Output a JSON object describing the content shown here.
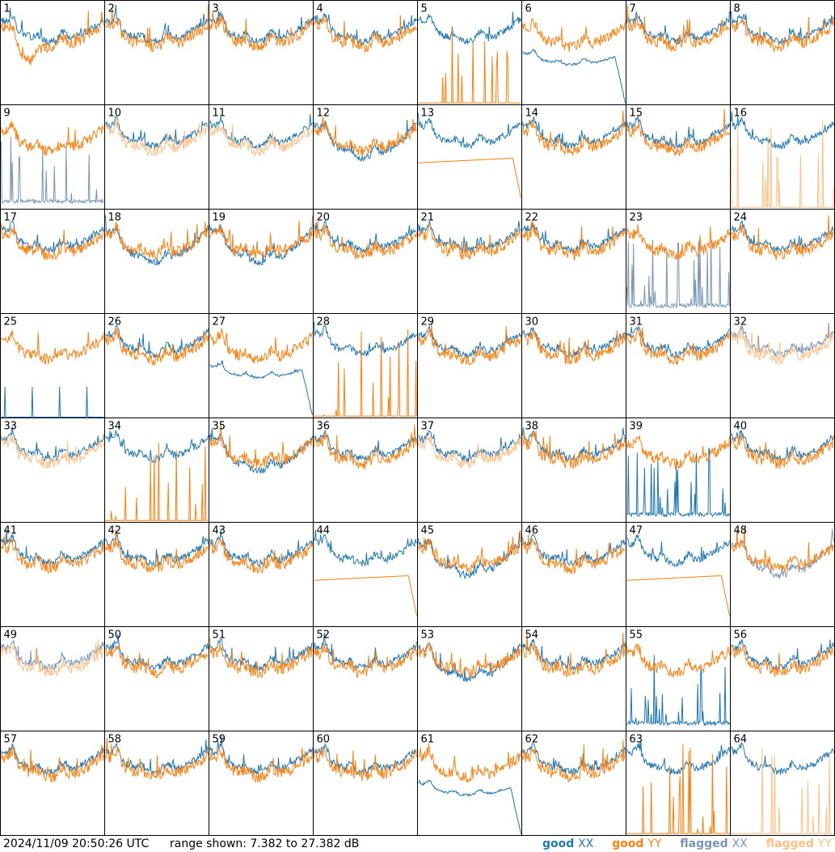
{
  "footer": {
    "timestamp": "2024/11/09 20:50:26 UTC",
    "range": "range shown: 7.382 to 27.382 dB"
  },
  "legend": {
    "good_xx_word": "good",
    "good_xx_pol": "XX",
    "good_yy_word": "good",
    "good_yy_pol": "YY",
    "flagged_xx_word": "flagged",
    "flagged_xx_pol": "XX",
    "flagged_yy_word": "flagged",
    "flagged_yy_pol": "YY"
  },
  "chart_data": {
    "type": "line",
    "layout": "small-multiples 8x8",
    "y_range_db": [
      7.382,
      27.382
    ],
    "colors": {
      "good_xx": "#1f77b4",
      "good_yy": "#ff7f0e",
      "flagged_xx": "#7a96b4",
      "flagged_yy": "#ffbf86"
    },
    "panels": [
      {
        "label": "1",
        "xx": "good",
        "yy": "good",
        "profile": "droopy_yy"
      },
      {
        "label": "2",
        "xx": "good",
        "yy": "good",
        "profile": "normal"
      },
      {
        "label": "3",
        "xx": "good",
        "yy": "good",
        "profile": "normal"
      },
      {
        "label": "4",
        "xx": "good",
        "yy": "good",
        "profile": "normal"
      },
      {
        "label": "5",
        "xx": "good",
        "yy": "good",
        "profile": "yy_spikes"
      },
      {
        "label": "6",
        "xx": "good",
        "yy": "good",
        "profile": "xx_droop"
      },
      {
        "label": "7",
        "xx": "good",
        "yy": "good",
        "profile": "normal"
      },
      {
        "label": "8",
        "xx": "good",
        "yy": "good",
        "profile": "normal"
      },
      {
        "label": "9",
        "xx": "flagged",
        "yy": "good",
        "profile": "xx_spikes"
      },
      {
        "label": "10",
        "xx": "good",
        "yy": "flagged",
        "profile": "normal"
      },
      {
        "label": "11",
        "xx": "good",
        "yy": "flagged",
        "profile": "normal"
      },
      {
        "label": "12",
        "xx": "good",
        "yy": "good",
        "profile": "xx_low"
      },
      {
        "label": "13",
        "xx": "good",
        "yy": "good",
        "profile": "yy_droop"
      },
      {
        "label": "14",
        "xx": "good",
        "yy": "good",
        "profile": "normal"
      },
      {
        "label": "15",
        "xx": "good",
        "yy": "good",
        "profile": "normal"
      },
      {
        "label": "16",
        "xx": "good",
        "yy": "flagged",
        "profile": "yy_spikes"
      },
      {
        "label": "17",
        "xx": "good",
        "yy": "good",
        "profile": "normal"
      },
      {
        "label": "18",
        "xx": "good",
        "yy": "good",
        "profile": "xx_low"
      },
      {
        "label": "19",
        "xx": "good",
        "yy": "good",
        "profile": "xx_low"
      },
      {
        "label": "20",
        "xx": "good",
        "yy": "good",
        "profile": "normal"
      },
      {
        "label": "21",
        "xx": "good",
        "yy": "good",
        "profile": "normal"
      },
      {
        "label": "22",
        "xx": "good",
        "yy": "good",
        "profile": "normal"
      },
      {
        "label": "23",
        "xx": "flagged",
        "yy": "good",
        "profile": "xx_noisy_low"
      },
      {
        "label": "24",
        "xx": "good",
        "yy": "good",
        "profile": "normal"
      },
      {
        "label": "25",
        "xx": "good",
        "yy": "good",
        "profile": "xx_missing"
      },
      {
        "label": "26",
        "xx": "good",
        "yy": "good",
        "profile": "normal"
      },
      {
        "label": "27",
        "xx": "good",
        "yy": "good",
        "profile": "xx_droop"
      },
      {
        "label": "28",
        "xx": "good",
        "yy": "good",
        "profile": "yy_spikes_only"
      },
      {
        "label": "29",
        "xx": "good",
        "yy": "good",
        "profile": "normal"
      },
      {
        "label": "30",
        "xx": "good",
        "yy": "good",
        "profile": "normal"
      },
      {
        "label": "31",
        "xx": "good",
        "yy": "good",
        "profile": "normal"
      },
      {
        "label": "32",
        "xx": "flagged",
        "yy": "flagged",
        "profile": "normal"
      },
      {
        "label": "33",
        "xx": "good",
        "yy": "flagged",
        "profile": "normal"
      },
      {
        "label": "34",
        "xx": "good",
        "yy": "good",
        "profile": "yy_spikes"
      },
      {
        "label": "35",
        "xx": "good",
        "yy": "good",
        "profile": "xx_low"
      },
      {
        "label": "36",
        "xx": "good",
        "yy": "good",
        "profile": "normal"
      },
      {
        "label": "37",
        "xx": "good",
        "yy": "flagged",
        "profile": "normal"
      },
      {
        "label": "38",
        "xx": "good",
        "yy": "good",
        "profile": "normal"
      },
      {
        "label": "39",
        "xx": "good",
        "yy": "good",
        "profile": "xx_spikes"
      },
      {
        "label": "40",
        "xx": "good",
        "yy": "good",
        "profile": "normal"
      },
      {
        "label": "41",
        "xx": "good",
        "yy": "good",
        "profile": "normal"
      },
      {
        "label": "42",
        "xx": "good",
        "yy": "good",
        "profile": "normal"
      },
      {
        "label": "43",
        "xx": "good",
        "yy": "good",
        "profile": "normal"
      },
      {
        "label": "44",
        "xx": "good",
        "yy": "good",
        "profile": "yy_droop"
      },
      {
        "label": "45",
        "xx": "good",
        "yy": "good",
        "profile": "xx_low"
      },
      {
        "label": "46",
        "xx": "good",
        "yy": "good",
        "profile": "normal"
      },
      {
        "label": "47",
        "xx": "good",
        "yy": "good",
        "profile": "yy_droop"
      },
      {
        "label": "48",
        "xx": "flagged",
        "yy": "good",
        "profile": "xx_low"
      },
      {
        "label": "49",
        "xx": "flagged",
        "yy": "flagged",
        "profile": "normal"
      },
      {
        "label": "50",
        "xx": "good",
        "yy": "good",
        "profile": "normal"
      },
      {
        "label": "51",
        "xx": "good",
        "yy": "good",
        "profile": "normal"
      },
      {
        "label": "52",
        "xx": "good",
        "yy": "good",
        "profile": "normal"
      },
      {
        "label": "53",
        "xx": "good",
        "yy": "good",
        "profile": "xx_low"
      },
      {
        "label": "54",
        "xx": "good",
        "yy": "good",
        "profile": "normal"
      },
      {
        "label": "55",
        "xx": "good",
        "yy": "good",
        "profile": "xx_spikes"
      },
      {
        "label": "56",
        "xx": "good",
        "yy": "good",
        "profile": "normal"
      },
      {
        "label": "57",
        "xx": "good",
        "yy": "good",
        "profile": "normal"
      },
      {
        "label": "58",
        "xx": "good",
        "yy": "good",
        "profile": "normal"
      },
      {
        "label": "59",
        "xx": "good",
        "yy": "good",
        "profile": "normal"
      },
      {
        "label": "60",
        "xx": "good",
        "yy": "good",
        "profile": "normal"
      },
      {
        "label": "61",
        "xx": "good",
        "yy": "good",
        "profile": "xx_droop"
      },
      {
        "label": "62",
        "xx": "good",
        "yy": "good",
        "profile": "normal"
      },
      {
        "label": "63",
        "xx": "good",
        "yy": "good",
        "profile": "yy_spikes_only"
      },
      {
        "label": "64",
        "xx": "good",
        "yy": "flagged",
        "profile": "yy_spikes"
      }
    ]
  }
}
